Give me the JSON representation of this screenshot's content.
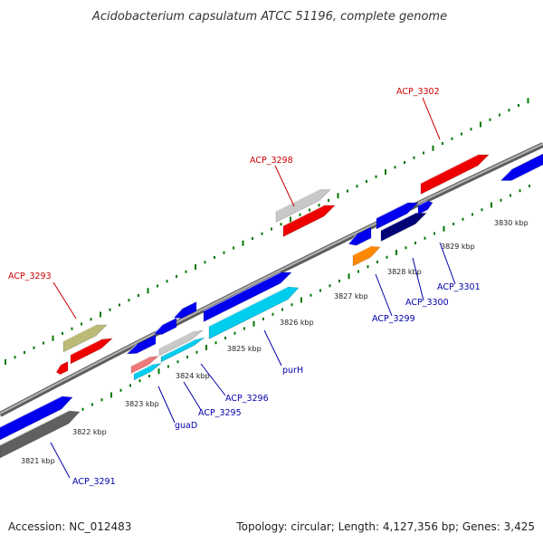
{
  "title": "Acidobacterium capsulatum ATCC 51196, complete genome",
  "footer": {
    "accession": "Accession: NC_012483",
    "summary": "Topology: circular; Length: 4,127,356 bp; Genes: 3,425"
  },
  "ticks": [
    "3821 kbp",
    "3822 kbp",
    "3823 kbp",
    "3824 kbp",
    "3825 kbp",
    "3826 kbp",
    "3827 kbp",
    "3828 kbp",
    "3829 kbp",
    "3830 kbp"
  ],
  "labels": {
    "top": [
      "ACP_3293",
      "ACP_3298",
      "ACP_3302"
    ],
    "bottom": [
      "ACP_3291",
      "guaD",
      "ACP_3295",
      "ACP_3296",
      "purH",
      "ACP_3299",
      "ACP_3300",
      "ACP_3301"
    ]
  },
  "colors": {
    "label_top": "#cc0000",
    "label_bottom": "#0000aa",
    "backbone": "#888888",
    "tick": "#007700",
    "blue": "#0000ee",
    "red": "#ee0000",
    "cyan": "#00ccee",
    "gray": "#c8c8c8",
    "olive": "#bbbb77",
    "dark_gray": "#606060",
    "navy": "#000077",
    "orange": "#ff8800",
    "pink": "#ee7777"
  }
}
